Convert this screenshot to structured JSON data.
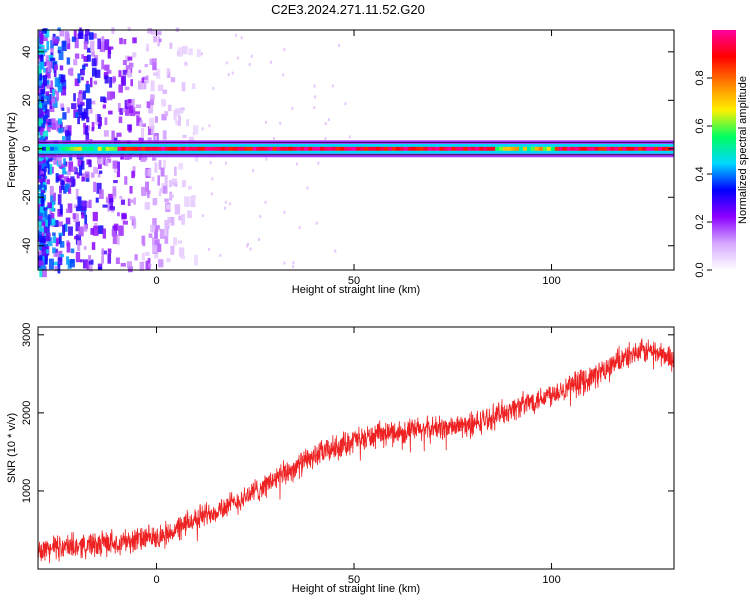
{
  "title": "C2E3.2024.271.11.52.G20",
  "chart_data": [
    {
      "type": "heatmap",
      "xlabel": "Height of straight line (km)",
      "ylabel": "Frequency (Hz)",
      "xlim": [
        -30,
        131
      ],
      "ylim": [
        -50,
        49
      ],
      "xticks": [
        0,
        50,
        100
      ],
      "yticks": [
        -40,
        -20,
        0,
        20,
        40
      ],
      "colorbar": {
        "label": "Normalized spectral amplitude",
        "range": [
          0,
          1
        ],
        "ticks": [
          "0.0",
          "0.2",
          "0.4",
          "0.6",
          "0.8"
        ],
        "colormap": [
          "#ffffff",
          "#d6a8ff",
          "#8c00ff",
          "#0000ff",
          "#00d8ff",
          "#00ff60",
          "#fff000",
          "#ff8000",
          "#ff0000",
          "#ff00a0"
        ]
      },
      "signal_frequency_hz": 0,
      "signal_band_hz": [
        -2,
        2
      ]
    },
    {
      "type": "line",
      "xlabel": "Height of straight line (km)",
      "ylabel": "SNR (10 * v/v)",
      "xlim": [
        -30,
        131
      ],
      "ylim": [
        0,
        3100
      ],
      "xticks": [
        0,
        50,
        100
      ],
      "yticks": [
        1000,
        2000,
        3000
      ],
      "color": "#ee2222",
      "series": [
        {
          "x": [
            -30,
            -20,
            -10,
            0,
            5,
            10,
            20,
            30,
            40,
            50,
            60,
            70,
            80,
            90,
            100,
            110,
            120,
            125,
            131
          ],
          "y": [
            250,
            300,
            350,
            400,
            500,
            650,
            850,
            1150,
            1450,
            1650,
            1750,
            1800,
            1850,
            2050,
            2250,
            2450,
            2750,
            2800,
            2700
          ],
          "noise": 130
        }
      ]
    }
  ]
}
